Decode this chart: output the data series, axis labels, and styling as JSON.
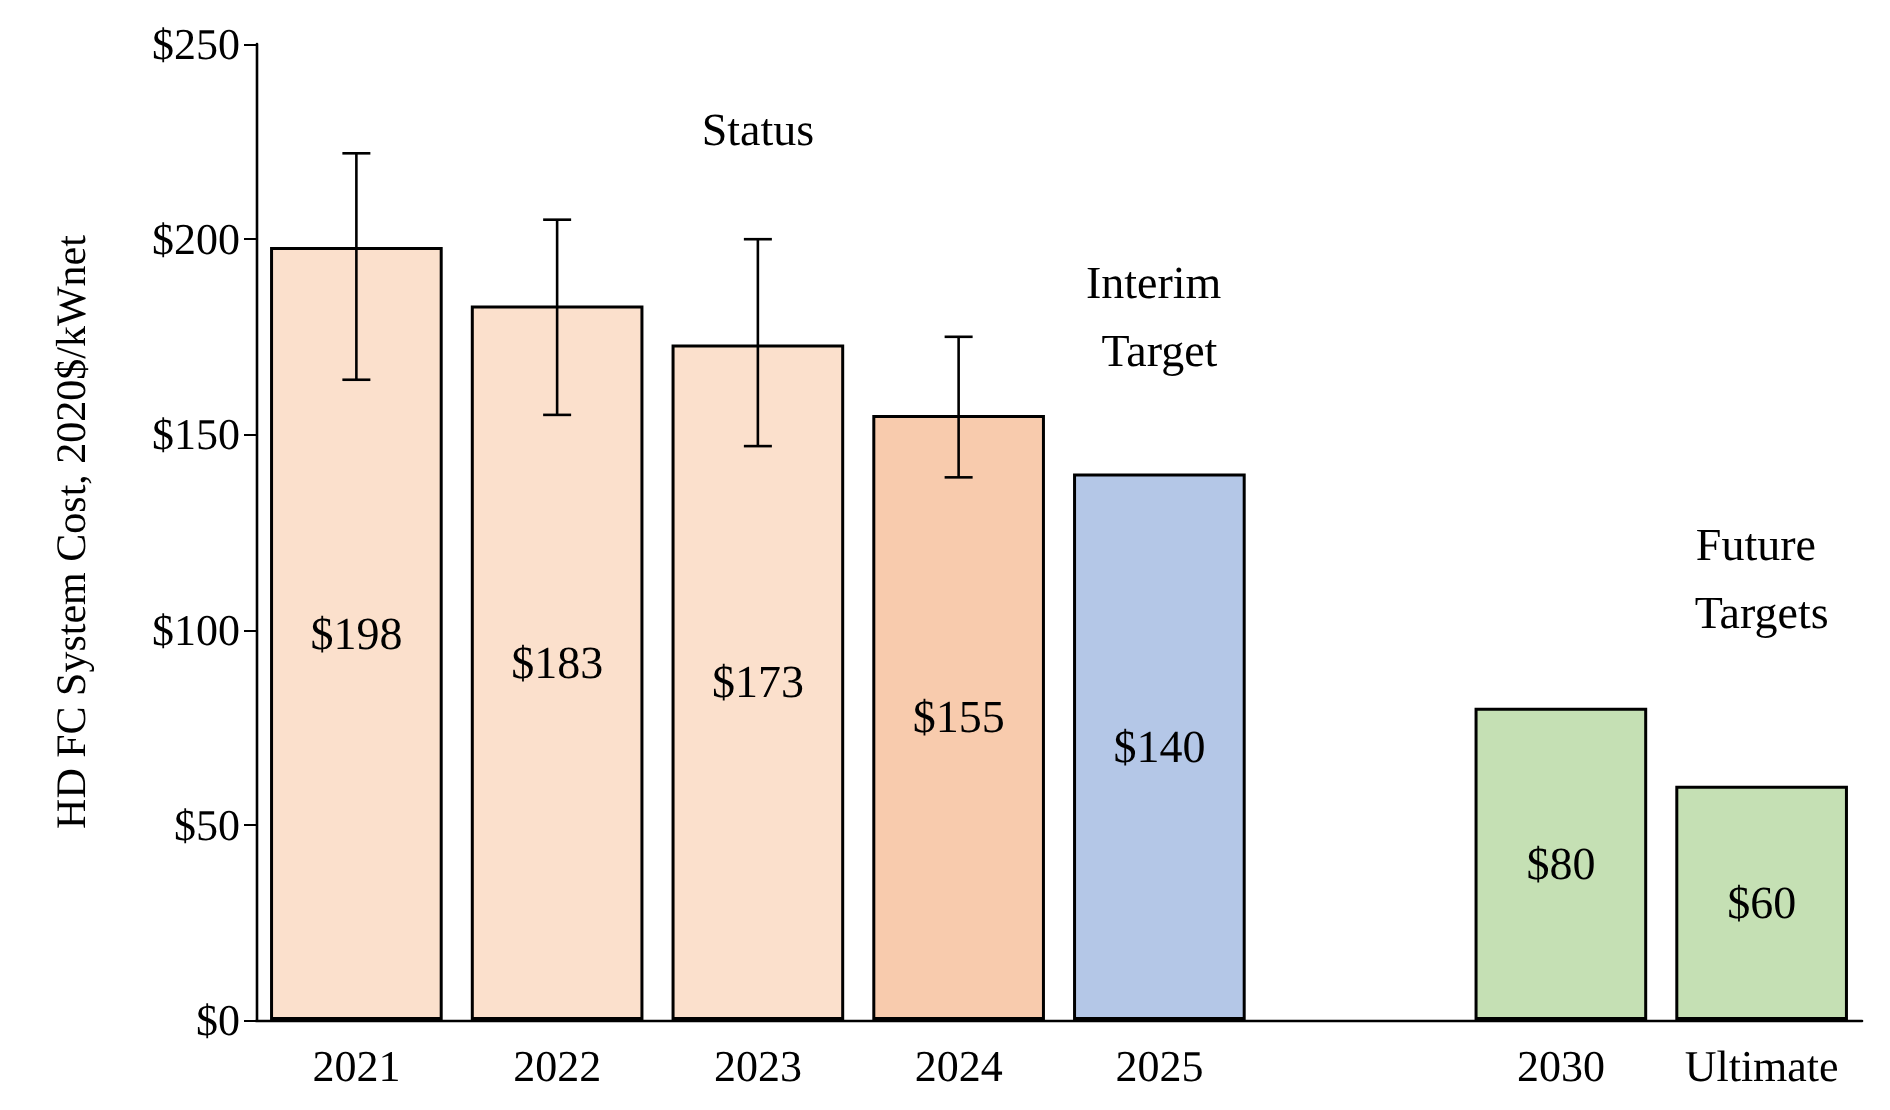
{
  "chart_data": {
    "type": "bar",
    "ylabel": "HD FC System Cost, 2020$/kWnet",
    "categories": [
      "2021",
      "2022",
      "2023",
      "2024",
      "2025",
      null,
      "2030",
      "Ultimate"
    ],
    "values": [
      198,
      183,
      173,
      155,
      140,
      null,
      80,
      60
    ],
    "colors": [
      "#fbe0cc",
      "#fbe0cc",
      "#fbe0cc",
      "#f8cbad",
      "#b4c7e7",
      null,
      "#c5e0b4",
      "#c5e0b4"
    ],
    "value_labels": [
      "$198",
      "$183",
      "$173",
      "$155",
      "$140",
      null,
      "$80",
      "$60"
    ],
    "errors": [
      [
        164,
        222
      ],
      [
        155,
        205
      ],
      [
        147,
        200
      ],
      [
        139,
        175
      ],
      null,
      null,
      null,
      null
    ],
    "ylim": [
      0,
      250
    ],
    "yticks": [
      {
        "value": 0,
        "label": "$0"
      },
      {
        "value": 50,
        "label": "$50"
      },
      {
        "value": 100,
        "label": "$100"
      },
      {
        "value": 150,
        "label": "$150"
      },
      {
        "value": 200,
        "label": "$200"
      },
      {
        "value": 250,
        "label": "$250"
      }
    ],
    "annotations": [
      "Status",
      "Interim Target",
      "Future Targets"
    ]
  }
}
